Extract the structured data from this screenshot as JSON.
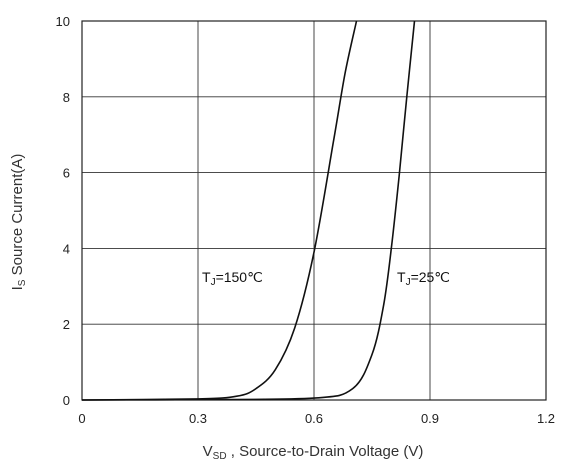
{
  "chart_data": {
    "type": "line",
    "xlabel": "V_SD , Source-to-Drain Voltage (V)",
    "xlabel_main": "V",
    "xlabel_sub": "SD",
    "xlabel_rest": " , Source-to-Drain Voltage (V)",
    "ylabel": "I_S Source Current(A)",
    "ylabel_main": "I",
    "ylabel_sub": "S",
    "ylabel_rest": " Source Current(A)",
    "xlim": [
      0,
      1.2
    ],
    "ylim": [
      0,
      10
    ],
    "xticks": [
      "0",
      "0.3",
      "0.6",
      "0.9",
      "1.2"
    ],
    "yticks": [
      "0",
      "2",
      "4",
      "6",
      "8",
      "10"
    ],
    "grid": true,
    "series": [
      {
        "name": "T_J=150℃",
        "label_main": "T",
        "label_sub": "J",
        "label_rest": "=150℃",
        "x": [
          0,
          0.3,
          0.4,
          0.45,
          0.5,
          0.55,
          0.6,
          0.65,
          0.68,
          0.71
        ],
        "y": [
          0,
          0.03,
          0.1,
          0.3,
          0.8,
          1.9,
          3.9,
          6.8,
          8.6,
          10
        ]
      },
      {
        "name": "T_J=25℃",
        "label_main": "T",
        "label_sub": "J",
        "label_rest": "=25℃",
        "x": [
          0,
          0.3,
          0.6,
          0.7,
          0.75,
          0.78,
          0.8,
          0.82,
          0.84,
          0.86
        ],
        "y": [
          0,
          0.01,
          0.05,
          0.3,
          1.2,
          2.5,
          4.0,
          5.9,
          8.0,
          10
        ]
      }
    ]
  }
}
